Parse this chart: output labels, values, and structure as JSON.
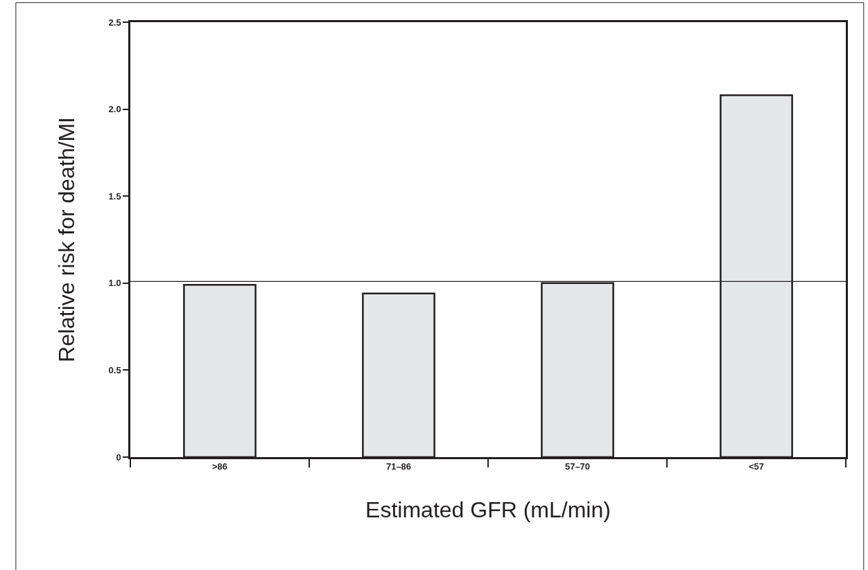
{
  "chart_data": {
    "type": "bar",
    "xlabel": "Estimated GFR (mL/min)",
    "ylabel": "Relative risk for death/MI",
    "categories": [
      ">86",
      "71–86",
      "57–70",
      "<57"
    ],
    "series": [
      {
        "color": "#e6e7e8",
        "values": [
          0.99,
          0.94,
          1.0,
          2.08
        ]
      }
    ],
    "ylim": [
      0,
      2.5
    ],
    "yticks": [
      0,
      {
        "value": 0.5,
        "label": "0.5"
      },
      {
        "value": 1,
        "label": "1.0"
      },
      {
        "value": 1.5,
        "label": "1.5"
      },
      {
        "value": 2,
        "label": "2.0"
      },
      {
        "value": 2.5,
        "label": "2.5"
      }
    ],
    "ref_lines": [
      {
        "axis": "y",
        "value": 1.01,
        "color": "#231f20"
      }
    ]
  }
}
